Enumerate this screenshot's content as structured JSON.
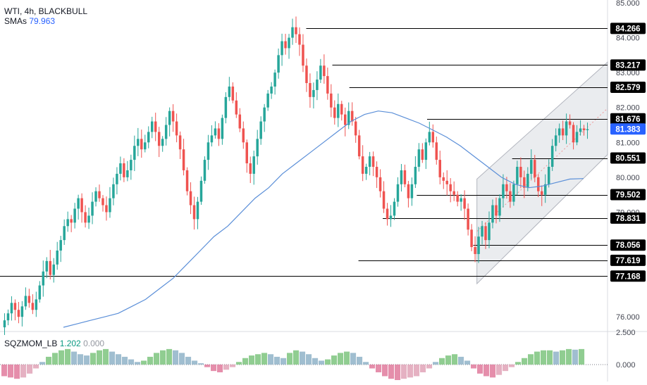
{
  "header": {
    "symbol": "WTI, 4h, BLACKBULL",
    "sma_label": "SMAs",
    "sma_value": "79.963"
  },
  "indicator": {
    "name": "SQZMOM_LB",
    "value1": "1.202",
    "value2": "0.000"
  },
  "colors": {
    "up_candle": "#26a69a",
    "down_candle": "#ef5350",
    "sma": "#5b8fd8",
    "price_badge": "#2962ff",
    "level_line": "#000000",
    "channel_fill": "#d1d4dc"
  },
  "chart_data": [
    {
      "type": "candlestick",
      "title": "WTI, 4h, BLACKBULL",
      "ylim": [
        75.6,
        85.0
      ],
      "y_ticks": [
        "85.000",
        "84.000",
        "83.000",
        "82.000",
        "81.000",
        "80.000",
        "79.000",
        "76.000"
      ],
      "levels": [
        {
          "label": "84.266",
          "value": 84.266,
          "x_start_frac": 0.504
        },
        {
          "label": "83.217",
          "value": 83.217,
          "x_start_frac": 0.547
        },
        {
          "label": "82.579",
          "value": 82.579,
          "x_start_frac": 0.575
        },
        {
          "label": "81.676",
          "value": 81.676,
          "x_start_frac": 0.703
        },
        {
          "label": "80.551",
          "value": 80.551,
          "x_start_frac": 0.843
        },
        {
          "label": "79.502",
          "value": 79.502,
          "x_start_frac": 0.686
        },
        {
          "label": "78.831",
          "value": 78.831,
          "x_start_frac": 0.63
        },
        {
          "label": "78.056",
          "value": 78.056,
          "x_start_frac": 0.779
        },
        {
          "label": "77.619",
          "value": 77.619,
          "x_start_frac": 0.59
        },
        {
          "label": "77.168",
          "value": 77.168,
          "x_start_frac": 0.0
        }
      ],
      "current_price": {
        "label": "81.383",
        "value": 81.383
      },
      "channel": {
        "upper_start": [
          0.785,
          79.95
        ],
        "upper_end": [
          1.0,
          83.3
        ],
        "lower_start": [
          0.785,
          76.95
        ],
        "lower_end": [
          1.0,
          80.65
        ]
      },
      "ohlc_closes": [
        75.9,
        76.1,
        76.4,
        76.2,
        76.0,
        76.3,
        76.6,
        76.4,
        76.2,
        76.5,
        76.9,
        77.3,
        77.6,
        77.2,
        77.5,
        77.9,
        78.2,
        78.6,
        78.8,
        78.7,
        79.1,
        79.4,
        79.0,
        78.7,
        78.9,
        79.3,
        79.6,
        79.4,
        79.2,
        79.0,
        79.4,
        79.8,
        80.1,
        80.4,
        80.0,
        80.2,
        80.5,
        80.9,
        81.1,
        80.8,
        81.0,
        81.3,
        81.6,
        81.3,
        80.9,
        81.1,
        81.5,
        81.9,
        81.6,
        81.2,
        80.8,
        80.2,
        79.6,
        79.2,
        78.8,
        79.3,
        79.9,
        80.5,
        81.0,
        81.2,
        81.4,
        81.1,
        81.7,
        82.3,
        82.6,
        82.2,
        81.8,
        81.4,
        81.0,
        80.4,
        80.1,
        80.6,
        81.1,
        81.6,
        82.0,
        82.4,
        82.6,
        83.0,
        83.5,
        83.9,
        83.7,
        84.0,
        84.3,
        84.1,
        83.8,
        83.2,
        82.7,
        82.3,
        82.5,
        82.8,
        83.2,
        82.9,
        82.4,
        82.0,
        81.7,
        82.1,
        81.8,
        81.5,
        81.9,
        81.6,
        81.2,
        80.6,
        80.1,
        80.3,
        80.6,
        80.3,
        80.0,
        79.6,
        79.1,
        78.8,
        78.9,
        79.3,
        79.8,
        80.2,
        79.8,
        79.4,
        79.8,
        80.3,
        80.8,
        80.5,
        81.0,
        81.3,
        81.0,
        80.5,
        80.0,
        79.9,
        79.8,
        79.6,
        79.5,
        79.3,
        79.4,
        79.1,
        78.5,
        78.0,
        77.8,
        78.3,
        78.6,
        78.2,
        78.7,
        79.2,
        78.9,
        79.4,
        79.8,
        79.6,
        79.3,
        79.8,
        80.3,
        80.0,
        79.7,
        80.1,
        80.5,
        80.0,
        79.6,
        79.5,
        79.8,
        80.3,
        80.9,
        81.2,
        81.4,
        81.2,
        81.6,
        81.5,
        81.0,
        81.3,
        81.4,
        81.35,
        81.38
      ],
      "sma_series": [
        75.7,
        75.8,
        75.9,
        76.0,
        76.1,
        76.3,
        76.5,
        76.8,
        77.1,
        77.5,
        77.9,
        78.3,
        78.6,
        79.0,
        79.4,
        79.7,
        80.1,
        80.4,
        80.7,
        81.0,
        81.3,
        81.6,
        81.8,
        81.9,
        81.85,
        81.7,
        81.55,
        81.35,
        81.15,
        80.9,
        80.6,
        80.3,
        80.0,
        79.8,
        79.7,
        79.75,
        79.85,
        79.95,
        79.963
      ],
      "subplot": {
        "name": "SQZMOM_LB",
        "ylim": [
          -1.2,
          2.5
        ],
        "y_ticks": [
          "2.500",
          "0.000"
        ],
        "histogram": [
          -0.9,
          -1.0,
          -1.1,
          -1.0,
          -0.7,
          -0.3,
          0.2,
          0.6,
          0.9,
          1.1,
          1.2,
          1.0,
          0.8,
          0.7,
          0.9,
          1.1,
          1.2,
          1.0,
          0.8,
          0.6,
          0.4,
          0.2,
          0.3,
          0.6,
          0.9,
          1.1,
          1.2,
          1.1,
          0.9,
          0.6,
          0.3,
          0.1,
          -0.2,
          -0.5,
          -0.6,
          -0.4,
          -0.2,
          0.2,
          0.5,
          0.7,
          0.8,
          0.9,
          0.8,
          0.6,
          0.5,
          0.9,
          1.1,
          1.0,
          0.8,
          0.5,
          0.3,
          0.4,
          0.7,
          0.9,
          1.0,
          0.9,
          0.6,
          0.2,
          -0.3,
          -0.6,
          -0.9,
          -1.1,
          -1.2,
          -1.1,
          -1.0,
          -0.9,
          -0.6,
          -0.3,
          0.2,
          0.5,
          0.7,
          0.8,
          0.6,
          0.3,
          -0.3,
          -0.7,
          -0.9,
          -1.0,
          -0.8,
          -0.5,
          -0.2,
          0.2,
          0.5,
          0.8,
          1.0,
          1.1,
          1.1,
          1.0,
          1.1,
          1.2,
          1.15,
          1.2
        ]
      }
    }
  ]
}
